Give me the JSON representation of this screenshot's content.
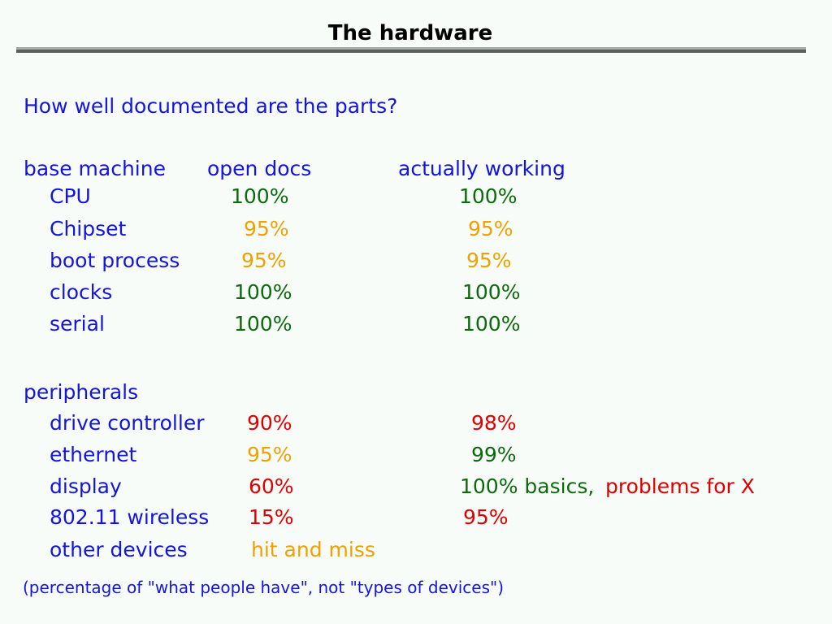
{
  "title": "The hardware",
  "question": "How well documented are the parts?",
  "colors": {
    "heading": "#1414e0",
    "good": "#0b6b0b",
    "partial": "#f0a000",
    "bad": "#e00000"
  },
  "header": {
    "section": "base machine",
    "col1": "open docs",
    "col2": "actually working"
  },
  "base": [
    {
      "label": "CPU",
      "docs": "100%",
      "docs_color": "green",
      "work": "100%",
      "work_color": "green"
    },
    {
      "label": "Chipset",
      "docs": "95%",
      "docs_color": "orange",
      "work": "95%",
      "work_color": "orange"
    },
    {
      "label": "boot process",
      "docs": "95%",
      "docs_color": "orange",
      "work": "95%",
      "work_color": "orange"
    },
    {
      "label": "clocks",
      "docs": "100%",
      "docs_color": "green",
      "work": "100%",
      "work_color": "green"
    },
    {
      "label": "serial",
      "docs": "100%",
      "docs_color": "green",
      "work": "100%",
      "work_color": "green"
    }
  ],
  "peripherals_label": "peripherals",
  "peripherals": [
    {
      "label": "drive controller",
      "docs": "90%",
      "docs_color": "red",
      "work": "98%",
      "work_color": "red"
    },
    {
      "label": "ethernet",
      "docs": "95%",
      "docs_color": "orange",
      "work": "99%",
      "work_color": "green"
    },
    {
      "label": "display",
      "docs": "60%",
      "docs_color": "red",
      "work": "100% basics,",
      "work_color": "green",
      "work_extra": "problems for X",
      "work_extra_color": "red"
    },
    {
      "label": "802.11 wireless",
      "docs": "15%",
      "docs_color": "red",
      "work": "95%",
      "work_color": "red"
    },
    {
      "label": "other devices",
      "docs": "hit and miss",
      "docs_color": "orange"
    }
  ],
  "footnote": "(percentage of \"what people have\", not \"types of devices\")"
}
